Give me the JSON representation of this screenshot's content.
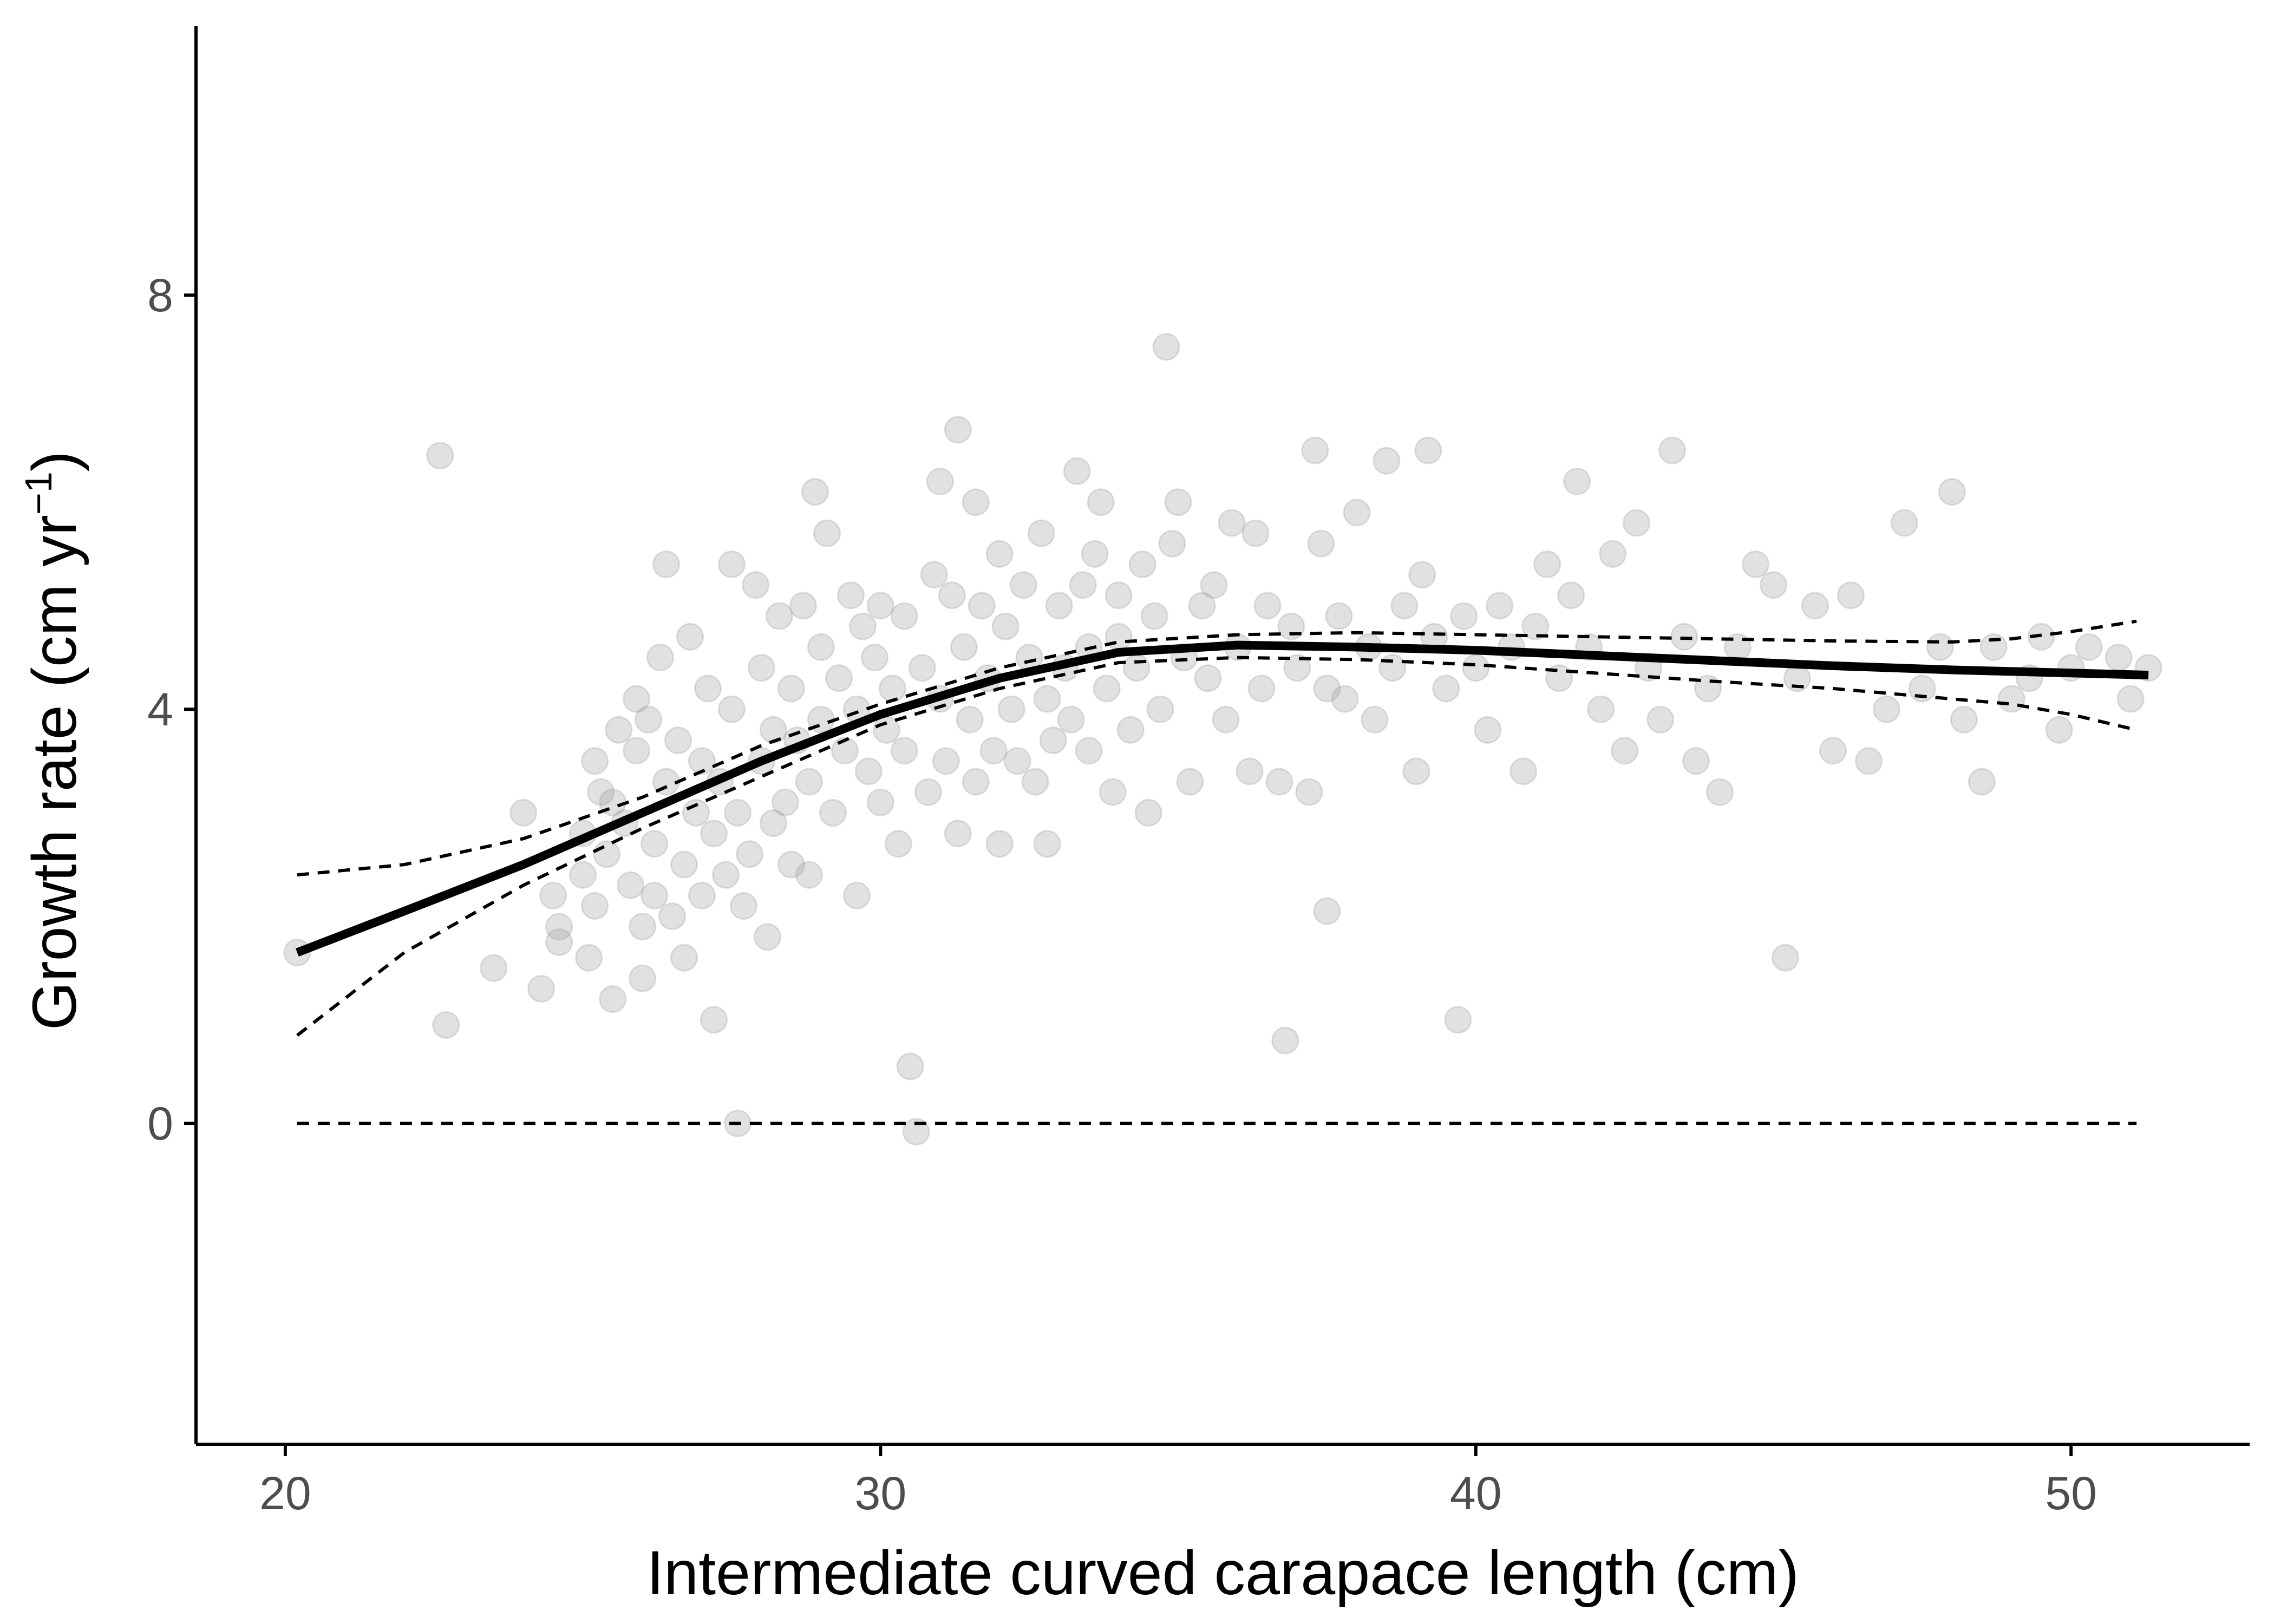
{
  "chart_data": {
    "type": "scatter",
    "xlabel": "Intermediate curved carapace length (cm)",
    "ylabel_main": "Growth rate (cm yr",
    "ylabel_sup": "−1",
    "ylabel_close": ")",
    "xlim": [
      18.5,
      53
    ],
    "ylim": [
      -3.1,
      10.6
    ],
    "xticks": [
      20,
      30,
      40,
      50
    ],
    "yticks": [
      0,
      4,
      8
    ],
    "grid": false,
    "legend": "none",
    "colors": {
      "points": "#9a9a9a",
      "fit": "#000000",
      "band": "#000000",
      "axis": "#000000",
      "tick_text": "#4d4d4d"
    },
    "point_opacity": 0.3,
    "zero_line": {
      "y": 0,
      "x_range": [
        20.2,
        51.1
      ],
      "style": "dashed"
    },
    "fit_line": {
      "x": [
        20.2,
        22,
        24,
        26,
        28,
        30,
        32,
        34,
        36,
        38,
        40,
        42,
        44,
        46,
        48,
        50,
        51.3
      ],
      "y": [
        1.65,
        2.05,
        2.5,
        3.0,
        3.5,
        3.95,
        4.3,
        4.55,
        4.62,
        4.6,
        4.57,
        4.52,
        4.47,
        4.42,
        4.38,
        4.35,
        4.33
      ]
    },
    "ci_upper": {
      "x": [
        20.2,
        22,
        24,
        26,
        28,
        30,
        32,
        34,
        36,
        38,
        40,
        42,
        44,
        46,
        48,
        49,
        50,
        51.1
      ],
      "y": [
        2.4,
        2.5,
        2.75,
        3.15,
        3.65,
        4.05,
        4.4,
        4.65,
        4.72,
        4.74,
        4.72,
        4.7,
        4.68,
        4.66,
        4.65,
        4.68,
        4.75,
        4.85
      ]
    },
    "ci_lower": {
      "x": [
        20.2,
        22,
        24,
        26,
        28,
        30,
        32,
        34,
        36,
        38,
        40,
        42,
        44,
        46,
        48,
        49,
        50,
        51.1
      ],
      "y": [
        0.85,
        1.65,
        2.3,
        2.85,
        3.35,
        3.85,
        4.2,
        4.45,
        4.5,
        4.48,
        4.43,
        4.35,
        4.27,
        4.2,
        4.1,
        4.05,
        3.95,
        3.8
      ]
    },
    "points": [
      [
        20.2,
        1.65
      ],
      [
        22.6,
        6.45
      ],
      [
        22.7,
        0.95
      ],
      [
        23.5,
        1.5
      ],
      [
        24,
        3.0
      ],
      [
        24.3,
        1.3
      ],
      [
        24.5,
        2.2
      ],
      [
        24.6,
        1.9
      ],
      [
        24.6,
        1.75
      ],
      [
        25,
        2.8
      ],
      [
        25,
        2.4
      ],
      [
        25.1,
        1.6
      ],
      [
        25.2,
        3.5
      ],
      [
        25.2,
        2.1
      ],
      [
        25.3,
        3.2
      ],
      [
        25.4,
        2.6
      ],
      [
        25.5,
        1.2
      ],
      [
        25.5,
        3.1
      ],
      [
        25.6,
        3.8
      ],
      [
        25.7,
        2.9
      ],
      [
        25.8,
        2.3
      ],
      [
        25.9,
        4.1
      ],
      [
        25.9,
        3.6
      ],
      [
        26,
        1.9
      ],
      [
        26,
        1.4
      ],
      [
        26.1,
        3.9
      ],
      [
        26.2,
        2.7
      ],
      [
        26.2,
        2.2
      ],
      [
        26.3,
        4.5
      ],
      [
        26.4,
        5.4
      ],
      [
        26.4,
        3.3
      ],
      [
        26.5,
        2.0
      ],
      [
        26.6,
        3.7
      ],
      [
        26.7,
        2.5
      ],
      [
        26.7,
        1.6
      ],
      [
        26.8,
        4.7
      ],
      [
        26.9,
        3.0
      ],
      [
        27,
        2.2
      ],
      [
        27,
        3.5
      ],
      [
        27.1,
        4.2
      ],
      [
        27.2,
        2.8
      ],
      [
        27.2,
        1.0
      ],
      [
        27.3,
        3.3
      ],
      [
        27.4,
        2.4
      ],
      [
        27.5,
        5.4
      ],
      [
        27.5,
        4.0
      ],
      [
        27.6,
        3.0
      ],
      [
        27.6,
        0.0
      ],
      [
        27.7,
        2.1
      ],
      [
        27.8,
        2.6
      ],
      [
        27.9,
        5.2
      ],
      [
        28,
        3.5
      ],
      [
        28,
        4.4
      ],
      [
        28.1,
        1.8
      ],
      [
        28.2,
        2.9
      ],
      [
        28.2,
        3.8
      ],
      [
        28.3,
        4.9
      ],
      [
        28.4,
        3.1
      ],
      [
        28.5,
        2.5
      ],
      [
        28.5,
        4.2
      ],
      [
        28.6,
        3.7
      ],
      [
        28.7,
        5.0
      ],
      [
        28.8,
        2.4
      ],
      [
        28.8,
        3.3
      ],
      [
        28.9,
        6.1
      ],
      [
        29,
        4.6
      ],
      [
        29,
        3.9
      ],
      [
        29.1,
        5.7
      ],
      [
        29.2,
        3.0
      ],
      [
        29.3,
        4.3
      ],
      [
        29.4,
        3.6
      ],
      [
        29.5,
        5.1
      ],
      [
        29.6,
        2.2
      ],
      [
        29.6,
        4.0
      ],
      [
        29.7,
        4.8
      ],
      [
        29.8,
        3.4
      ],
      [
        29.9,
        4.5
      ],
      [
        30,
        3.1
      ],
      [
        30,
        5.0
      ],
      [
        30.1,
        3.8
      ],
      [
        30.2,
        4.2
      ],
      [
        30.3,
        2.7
      ],
      [
        30.4,
        3.6
      ],
      [
        30.4,
        4.9
      ],
      [
        30.5,
        0.55
      ],
      [
        30.6,
        -0.08
      ],
      [
        30.7,
        4.4
      ],
      [
        30.8,
        3.2
      ],
      [
        30.9,
        5.3
      ],
      [
        31,
        6.2
      ],
      [
        31,
        4.1
      ],
      [
        31.1,
        3.5
      ],
      [
        31.2,
        5.1
      ],
      [
        31.3,
        6.7
      ],
      [
        31.3,
        2.8
      ],
      [
        31.4,
        4.6
      ],
      [
        31.5,
        3.9
      ],
      [
        31.6,
        6.0
      ],
      [
        31.6,
        3.3
      ],
      [
        31.7,
        5.0
      ],
      [
        31.8,
        4.3
      ],
      [
        31.9,
        3.6
      ],
      [
        32,
        5.5
      ],
      [
        32,
        2.7
      ],
      [
        32.1,
        4.8
      ],
      [
        32.2,
        4.0
      ],
      [
        32.3,
        3.5
      ],
      [
        32.4,
        5.2
      ],
      [
        32.5,
        4.5
      ],
      [
        32.6,
        3.3
      ],
      [
        32.7,
        5.7
      ],
      [
        32.8,
        4.1
      ],
      [
        32.8,
        2.7
      ],
      [
        32.9,
        3.7
      ],
      [
        33,
        5.0
      ],
      [
        33.1,
        4.4
      ],
      [
        33.2,
        3.9
      ],
      [
        33.3,
        6.3
      ],
      [
        33.4,
        5.2
      ],
      [
        33.5,
        4.6
      ],
      [
        33.5,
        3.6
      ],
      [
        33.6,
        5.5
      ],
      [
        33.7,
        6.0
      ],
      [
        33.8,
        4.2
      ],
      [
        33.9,
        3.2
      ],
      [
        34,
        5.1
      ],
      [
        34,
        4.7
      ],
      [
        34.2,
        3.8
      ],
      [
        34.3,
        4.4
      ],
      [
        34.4,
        5.4
      ],
      [
        34.5,
        3.0
      ],
      [
        34.6,
        4.9
      ],
      [
        34.7,
        4.0
      ],
      [
        34.8,
        7.5
      ],
      [
        34.9,
        5.6
      ],
      [
        35,
        6.0
      ],
      [
        35.1,
        4.5
      ],
      [
        35.2,
        3.3
      ],
      [
        35.4,
        5.0
      ],
      [
        35.5,
        4.3
      ],
      [
        35.6,
        5.2
      ],
      [
        35.8,
        3.9
      ],
      [
        35.9,
        5.8
      ],
      [
        36,
        4.6
      ],
      [
        36.2,
        3.4
      ],
      [
        36.3,
        5.7
      ],
      [
        36.4,
        4.2
      ],
      [
        36.5,
        5.0
      ],
      [
        36.7,
        3.3
      ],
      [
        36.8,
        0.8
      ],
      [
        36.9,
        4.8
      ],
      [
        37,
        4.4
      ],
      [
        37.2,
        3.2
      ],
      [
        37.3,
        6.5
      ],
      [
        37.4,
        5.6
      ],
      [
        37.5,
        4.2
      ],
      [
        37.5,
        2.05
      ],
      [
        37.7,
        4.9
      ],
      [
        37.8,
        4.1
      ],
      [
        38,
        5.9
      ],
      [
        38.2,
        4.6
      ],
      [
        38.3,
        3.9
      ],
      [
        38.5,
        6.4
      ],
      [
        38.6,
        4.4
      ],
      [
        38.8,
        5.0
      ],
      [
        39,
        3.4
      ],
      [
        39.1,
        5.3
      ],
      [
        39.2,
        6.5
      ],
      [
        39.3,
        4.7
      ],
      [
        39.5,
        4.2
      ],
      [
        39.7,
        1.0
      ],
      [
        39.8,
        4.9
      ],
      [
        40,
        4.4
      ],
      [
        40.2,
        3.8
      ],
      [
        40.4,
        5.0
      ],
      [
        40.6,
        4.6
      ],
      [
        40.8,
        3.4
      ],
      [
        41,
        4.8
      ],
      [
        41.2,
        5.4
      ],
      [
        41.4,
        4.3
      ],
      [
        41.6,
        5.1
      ],
      [
        41.7,
        6.2
      ],
      [
        41.9,
        4.6
      ],
      [
        42.1,
        4.0
      ],
      [
        42.3,
        5.5
      ],
      [
        42.5,
        3.6
      ],
      [
        42.7,
        5.8
      ],
      [
        42.9,
        4.4
      ],
      [
        43.1,
        3.9
      ],
      [
        43.3,
        6.5
      ],
      [
        43.5,
        4.7
      ],
      [
        43.7,
        3.5
      ],
      [
        43.9,
        4.2
      ],
      [
        44.1,
        3.2
      ],
      [
        44.4,
        4.6
      ],
      [
        44.7,
        5.4
      ],
      [
        45,
        5.2
      ],
      [
        45.2,
        1.6
      ],
      [
        45.4,
        4.3
      ],
      [
        45.7,
        5.0
      ],
      [
        46,
        3.6
      ],
      [
        46.3,
        5.1
      ],
      [
        46.6,
        3.5
      ],
      [
        46.9,
        4.0
      ],
      [
        47.2,
        5.8
      ],
      [
        47.5,
        4.2
      ],
      [
        47.8,
        4.6
      ],
      [
        48,
        6.1
      ],
      [
        48.2,
        3.9
      ],
      [
        48.5,
        3.3
      ],
      [
        48.7,
        4.6
      ],
      [
        49,
        4.1
      ],
      [
        49.3,
        4.3
      ],
      [
        49.5,
        4.7
      ],
      [
        49.8,
        3.8
      ],
      [
        50,
        4.4
      ],
      [
        50.3,
        4.6
      ],
      [
        50.8,
        4.5
      ],
      [
        51,
        4.1
      ],
      [
        51.3,
        4.4
      ]
    ]
  }
}
